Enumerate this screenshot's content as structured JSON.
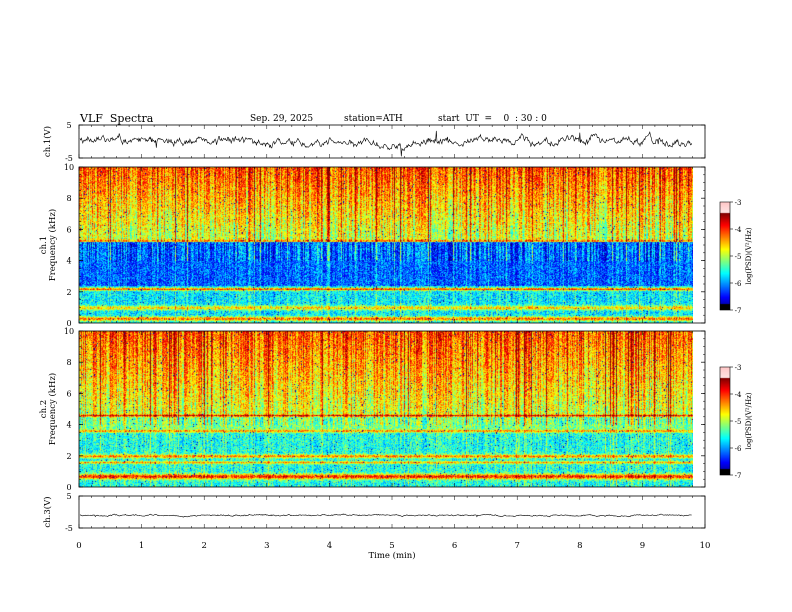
{
  "header": {
    "title": "VLF  Spectra",
    "date": "Sep. 29, 2025",
    "station": "station=ATH",
    "start": "start  UT  =    0  : 30 : 0"
  },
  "chart_data": [
    {
      "type": "line",
      "name": "ch1-waveform",
      "ylabel": "ch.1(V)",
      "x_range": [
        0,
        10
      ],
      "ylim": [
        -5,
        5
      ],
      "yticks": [
        "5",
        "-5"
      ],
      "series": [
        {
          "name": "ch.1",
          "data_extent_min": 9.8,
          "approx_level": 0
        }
      ]
    },
    {
      "type": "heatmap",
      "name": "ch1-spectrogram",
      "ylabel": "ch.1\nFrequency  (kHz)",
      "x_range": [
        0,
        10
      ],
      "ylim": [
        0,
        10
      ],
      "yticks": [
        "0",
        "2",
        "4",
        "6",
        "8",
        "10"
      ],
      "colorbar": {
        "label": "log(PSD)(V²/Hz)",
        "range": [
          -7,
          -3
        ],
        "ticks": [
          "-3",
          "-4",
          "-5",
          "-6",
          "-7"
        ]
      }
    },
    {
      "type": "heatmap",
      "name": "ch2-spectrogram",
      "ylabel": "ch.2\nFrequency  (kHz)",
      "x_range": [
        0,
        10
      ],
      "ylim": [
        0,
        10
      ],
      "yticks": [
        "0",
        "2",
        "4",
        "6",
        "8",
        "10"
      ],
      "colorbar": {
        "label": "log(PSD)(V²/Hz)",
        "range": [
          -7,
          -3
        ],
        "ticks": [
          "-3",
          "-4",
          "-5",
          "-6",
          "-7"
        ]
      }
    },
    {
      "type": "line",
      "name": "ch3-waveform",
      "ylabel": "ch.3(V)",
      "x_range": [
        0,
        10
      ],
      "ylim": [
        -5,
        5
      ],
      "yticks": [
        "5",
        "-5"
      ],
      "series": [
        {
          "name": "ch.3",
          "data_extent_min": 9.8,
          "approx_level": -1
        }
      ]
    }
  ],
  "xaxis": {
    "label": "Time  (min)",
    "ticks": [
      "0",
      "1",
      "2",
      "3",
      "4",
      "5",
      "6",
      "7",
      "8",
      "9",
      "10"
    ]
  },
  "colors": {
    "waveform": "#000000",
    "axis": "#000000"
  }
}
